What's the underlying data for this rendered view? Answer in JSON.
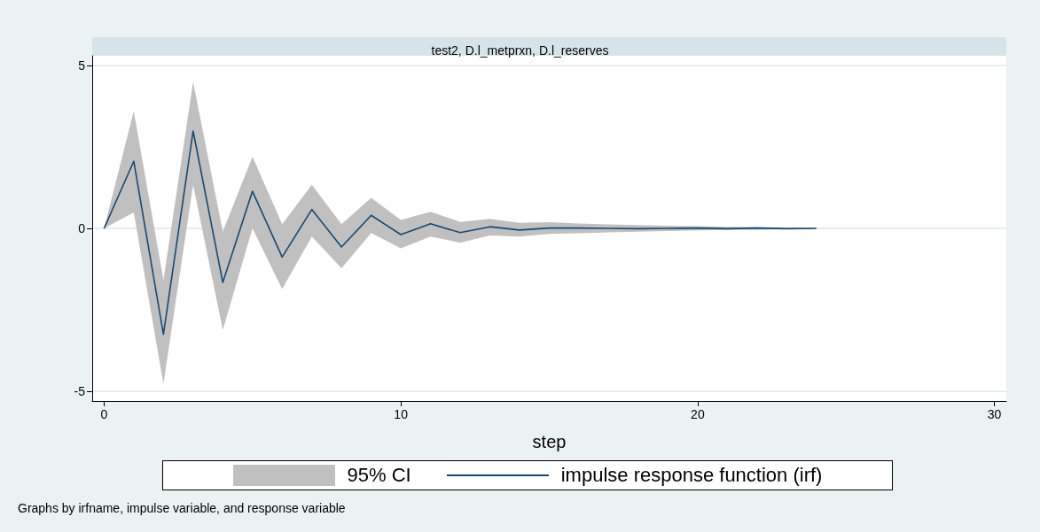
{
  "chart_data": {
    "type": "line",
    "title": "test2, D.l_metprxn, D.l_reserves",
    "xlabel": "step",
    "x": [
      0,
      1,
      2,
      3,
      4,
      5,
      6,
      7,
      8,
      9,
      10,
      11,
      12,
      13,
      14,
      15,
      16,
      17,
      18,
      19,
      20,
      21,
      22,
      23,
      24
    ],
    "series": [
      {
        "name": "impulse response function (irf)",
        "type": "line",
        "color": "#1a476f",
        "values": [
          0,
          2.06,
          -3.25,
          2.99,
          -1.66,
          1.14,
          -0.88,
          0.58,
          -0.57,
          0.4,
          -0.19,
          0.14,
          -0.13,
          0.05,
          -0.05,
          0.01,
          0.01,
          0,
          -0.01,
          0,
          0.01,
          -0.01,
          0.01,
          -0.01,
          0
        ],
        "lower": [
          0,
          0.49,
          -4.78,
          1.34,
          -3.12,
          0.0,
          -1.86,
          -0.25,
          -1.22,
          -0.14,
          -0.61,
          -0.25,
          -0.44,
          -0.22,
          -0.25,
          -0.17,
          -0.15,
          -0.12,
          -0.1,
          -0.08,
          -0.06,
          -0.05,
          -0.04,
          -0.03,
          -0.02
        ],
        "upper": [
          0,
          3.6,
          -1.59,
          4.5,
          -0.1,
          2.2,
          0.13,
          1.34,
          0.13,
          0.94,
          0.26,
          0.51,
          0.2,
          0.29,
          0.17,
          0.19,
          0.15,
          0.12,
          0.1,
          0.08,
          0.07,
          0.05,
          0.04,
          0.03,
          0.02
        ]
      }
    ],
    "xlim": [
      -0.4,
      30.4
    ],
    "xticks": [
      0,
      10,
      20,
      30
    ],
    "ylim": [
      -5.3,
      5.3
    ],
    "yticks": [
      -5,
      0,
      5
    ],
    "grid": "y",
    "legend": "bottom",
    "marker": "none",
    "annotations": [
      "95% CI",
      "Graphs by irfname, impulse variable, and response variable"
    ]
  }
}
